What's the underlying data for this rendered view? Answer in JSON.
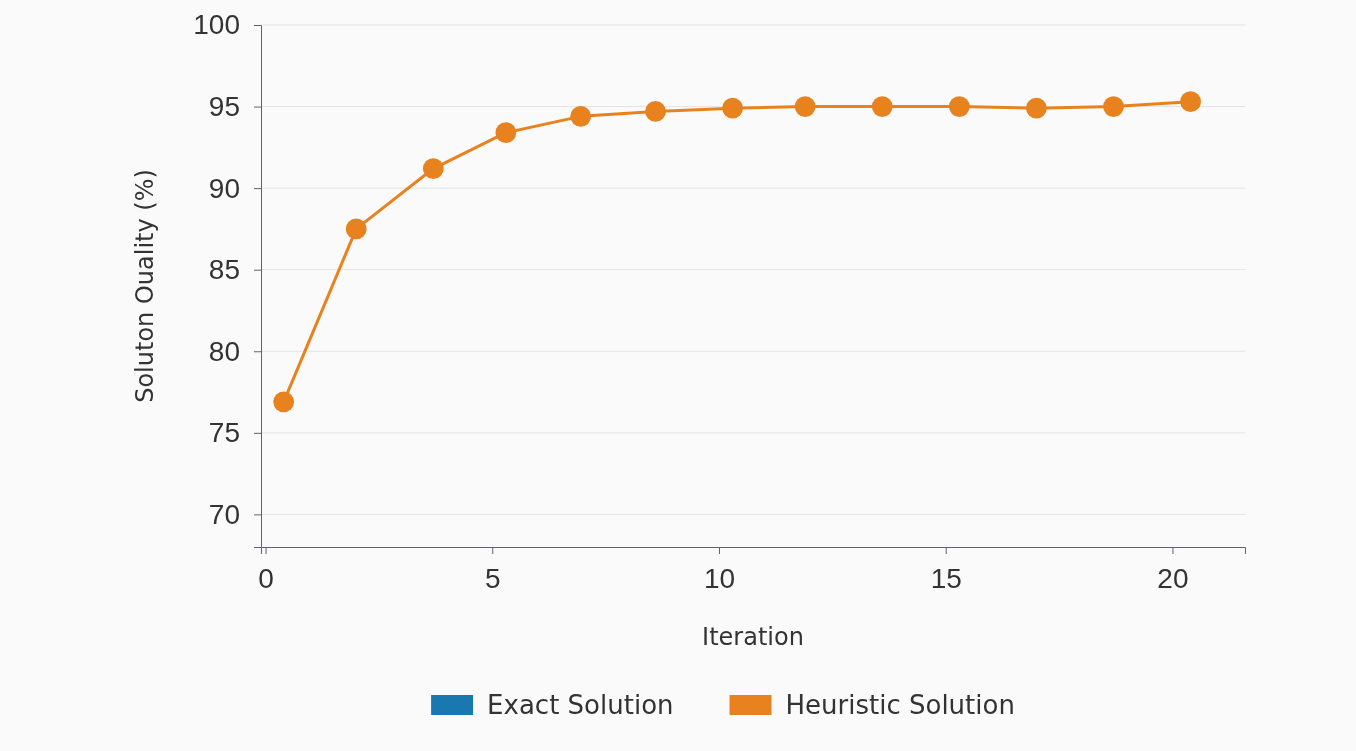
{
  "chart_data": {
    "type": "line",
    "xlabel": "Iteration",
    "ylabel": "Soluton Ouality (%)",
    "x": [
      0.4,
      2.0,
      3.7,
      5.3,
      6.95,
      8.6,
      10.3,
      11.9,
      13.6,
      15.3,
      17.0,
      18.7,
      20.4
    ],
    "series": [
      {
        "name": "Exact Solution",
        "color": "#1a78b0",
        "values": [
          null,
          null,
          null,
          null,
          null,
          null,
          null,
          null,
          null,
          null,
          null,
          null,
          null
        ]
      },
      {
        "name": "Heuristic Solution",
        "color": "#e8821e",
        "values": [
          76.9,
          87.5,
          91.2,
          93.4,
          94.4,
          94.7,
          94.9,
          95.0,
          95.0,
          95.0,
          94.9,
          95.0,
          95.3
        ]
      }
    ],
    "xlim": [
      -0.1,
      21.6
    ],
    "xticks": [
      0,
      5,
      10,
      15,
      20
    ],
    "ylim": [
      68,
      100
    ],
    "yticks": [
      70,
      75,
      80,
      85,
      90,
      95,
      100
    ],
    "grid": "y",
    "legend": "bottom",
    "marker": "circle",
    "line_style": "solid"
  }
}
